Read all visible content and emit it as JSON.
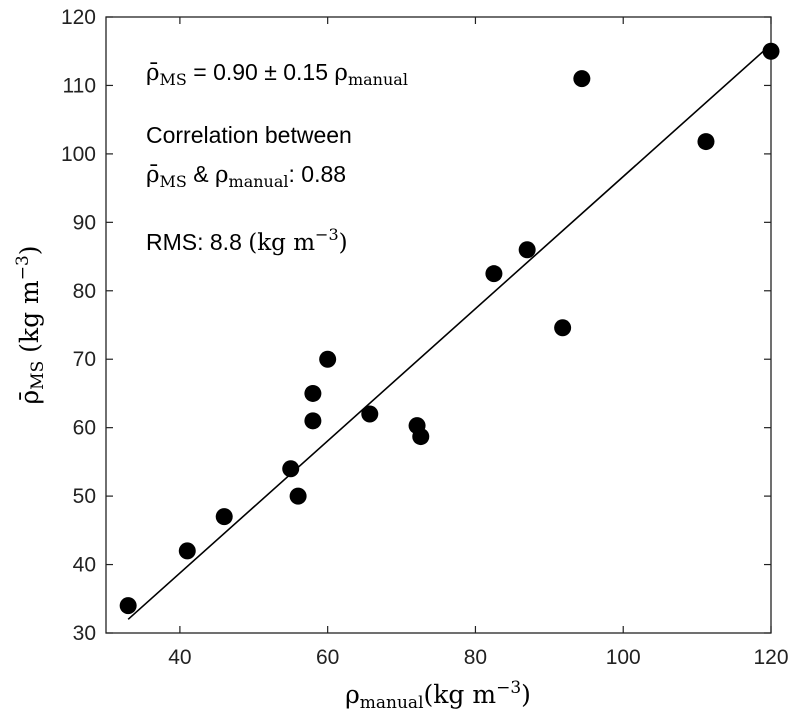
{
  "chart_data": {
    "type": "scatter",
    "xlabel": {
      "symbol": "ρ",
      "subscript": "manual",
      "units": "(kg m",
      "exponent": "−3",
      "close": ")"
    },
    "ylabel": {
      "symbol": "ρ̄",
      "subscript": "MS",
      "units": " (kg m",
      "exponent": "−3",
      "close": ")"
    },
    "xlim": [
      30,
      120
    ],
    "ylim": [
      30,
      120
    ],
    "xticks": [
      40,
      60,
      80,
      100,
      120
    ],
    "yticks": [
      30,
      40,
      50,
      60,
      70,
      80,
      90,
      100,
      110,
      120
    ],
    "grid": false,
    "points": [
      {
        "x": 33,
        "y": 34
      },
      {
        "x": 41,
        "y": 42
      },
      {
        "x": 46,
        "y": 47
      },
      {
        "x": 55,
        "y": 54
      },
      {
        "x": 56,
        "y": 50
      },
      {
        "x": 58,
        "y": 61
      },
      {
        "x": 58,
        "y": 65
      },
      {
        "x": 60,
        "y": 70
      },
      {
        "x": 65.7,
        "y": 62
      },
      {
        "x": 72.1,
        "y": 60.3
      },
      {
        "x": 72.6,
        "y": 58.7
      },
      {
        "x": 82.5,
        "y": 82.5
      },
      {
        "x": 87,
        "y": 86
      },
      {
        "x": 91.8,
        "y": 74.6
      },
      {
        "x": 94.4,
        "y": 111
      },
      {
        "x": 111.2,
        "y": 101.8
      },
      {
        "x": 120,
        "y": 115
      }
    ],
    "fit_line": {
      "x": [
        33,
        120
      ],
      "y": [
        32,
        116
      ]
    },
    "annotations": {
      "equation": {
        "symbol": "ρ̄",
        "subscript": "MS",
        "text": " = 0.90 ± 0.15 ",
        "rho": "ρ",
        "rho_subscript": "manual"
      },
      "correlation": {
        "line1": "Correlation between",
        "symbol": "ρ̄",
        "subscript": "MS",
        "amp": " & ",
        "rho": "ρ",
        "rho_subscript": "manual",
        "value": ": 0.88"
      },
      "rms": {
        "label": "RMS: 8.8 ",
        "units": "(kg m",
        "exponent": "−3",
        "close": ")"
      }
    }
  }
}
